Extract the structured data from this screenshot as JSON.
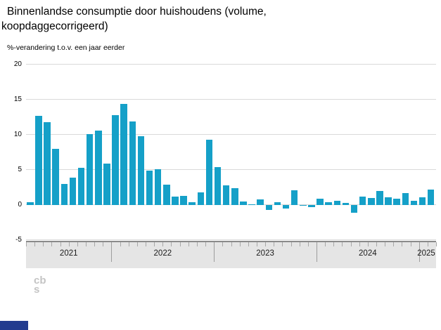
{
  "header": {
    "title": "Binnenlandse consumptie door huishoudens (volume, koopdaggecorrigeerd)",
    "subtitle": "%-verandering t.o.v. een jaar eerder"
  },
  "chart_data": {
    "type": "bar",
    "title": "Binnenlandse consumptie door huishoudens (volume, koopdaggecorrigeerd)",
    "ylabel": "%-verandering t.o.v. een jaar eerder",
    "ylim": [
      -5,
      20
    ],
    "y_ticks": [
      20,
      15,
      10,
      5,
      0,
      -5
    ],
    "grid": true,
    "bar_color": "#15a0c8",
    "x_axis_years": [
      "2021",
      "2022",
      "2023",
      "2024",
      "2025"
    ],
    "months": [
      "2021-03",
      "2021-04",
      "2021-05",
      "2021-06",
      "2021-07",
      "2021-08",
      "2021-09",
      "2021-10",
      "2021-11",
      "2021-12",
      "2022-01",
      "2022-02",
      "2022-03",
      "2022-04",
      "2022-05",
      "2022-06",
      "2022-07",
      "2022-08",
      "2022-09",
      "2022-10",
      "2022-11",
      "2022-12",
      "2023-01",
      "2023-02",
      "2023-03",
      "2023-04",
      "2023-05",
      "2023-06",
      "2023-07",
      "2023-08",
      "2023-09",
      "2023-10",
      "2023-11",
      "2023-12",
      "2024-01",
      "2024-02",
      "2024-03",
      "2024-04",
      "2024-05",
      "2024-06",
      "2024-07",
      "2024-08",
      "2024-09",
      "2024-10",
      "2024-11",
      "2024-12",
      "2025-01",
      "2025-02"
    ],
    "values": [
      0.4,
      12.7,
      11.8,
      8.0,
      3.0,
      3.9,
      5.3,
      10.1,
      10.6,
      5.9,
      12.8,
      14.4,
      11.9,
      9.8,
      4.9,
      5.1,
      2.9,
      1.2,
      1.3,
      0.4,
      1.8,
      9.3,
      5.4,
      2.8,
      2.4,
      0.5,
      0.1,
      0.8,
      -0.7,
      0.4,
      -0.5,
      2.1,
      -0.1,
      -0.3,
      0.9,
      0.4,
      0.6,
      0.3,
      -1.1,
      1.2,
      1.0,
      2.0,
      1.1,
      0.9,
      1.7,
      0.6,
      1.1,
      2.2
    ]
  },
  "footer": {
    "logo_text_top": "cb",
    "logo_text_bottom": "s"
  },
  "colors": {
    "bar": "#15a0c8",
    "grid": "#d9d9d9",
    "slider_bg": "#e5e5e5",
    "slider_border": "#8a8a8a",
    "footer_accent": "#233c8f"
  }
}
